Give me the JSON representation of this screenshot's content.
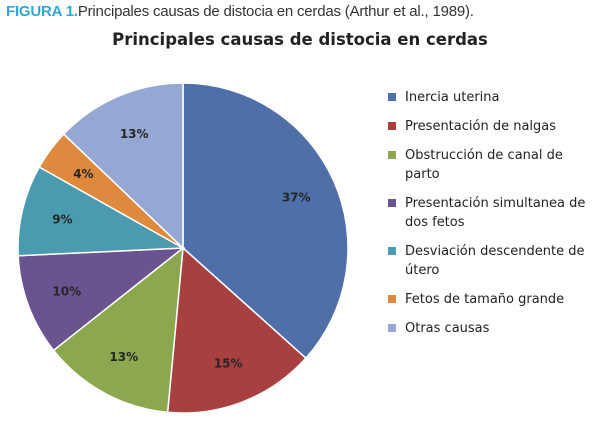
{
  "caption": {
    "label": "FIGURA 1.",
    "text": "Principales causas de distocia en cerdas (Arthur et al., 1989)."
  },
  "chart_data": {
    "type": "pie",
    "title": "Principales causas de distocia en cerdas",
    "legend_position": "right",
    "slices": [
      {
        "name": "Inercia uterina",
        "value": 37,
        "label": "37%",
        "color": "#4f6fa8"
      },
      {
        "name": "Presentación de nalgas",
        "value": 15,
        "label": "15%",
        "color": "#a8403f"
      },
      {
        "name": "Obstrucción de canal de parto",
        "value": 13,
        "label": "13%",
        "color": "#8ca84e"
      },
      {
        "name": "Presentación simultanea de dos fetos",
        "value": 10,
        "label": "10%",
        "color": "#6b5390"
      },
      {
        "name": "Desviación descendente de útero",
        "value": 9,
        "label": "9%",
        "color": "#4b9bb0"
      },
      {
        "name": "Fetos de tamaño grande",
        "value": 4,
        "label": "4%",
        "color": "#dd8a3f"
      },
      {
        "name": "Otras causas",
        "value": 13,
        "label": "13%",
        "color": "#95a7d2"
      }
    ]
  }
}
